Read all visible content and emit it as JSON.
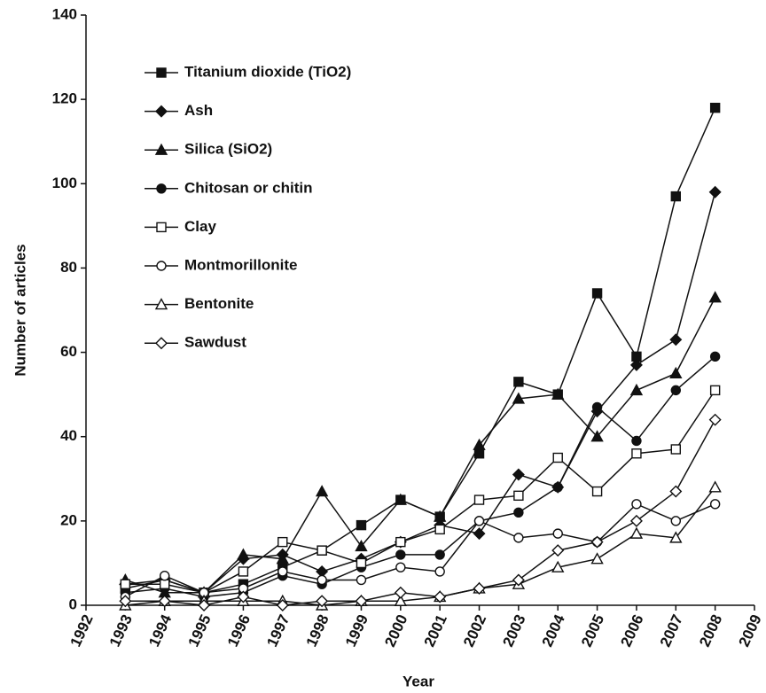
{
  "chart_data": {
    "type": "line",
    "xlabel": "Year",
    "ylabel": "Number of articles",
    "x": [
      1993,
      1994,
      1995,
      1996,
      1997,
      1998,
      1999,
      2000,
      2001,
      2002,
      2003,
      2004,
      2005,
      2006,
      2007,
      2008
    ],
    "xlim": [
      1992,
      2009
    ],
    "xticks": [
      1992,
      1993,
      1994,
      1995,
      1996,
      1997,
      1998,
      1999,
      2000,
      2001,
      2002,
      2003,
      2004,
      2005,
      2006,
      2007,
      2008,
      2009
    ],
    "ylim": [
      0,
      140
    ],
    "yticks": [
      0,
      20,
      40,
      60,
      80,
      100,
      120,
      140
    ],
    "legend": "upper left",
    "series": [
      {
        "name": "Titanium dioxide (TiO2)",
        "color": "#111111",
        "marker": "square",
        "filled": true,
        "values": [
          4,
          6,
          3,
          5,
          9,
          13,
          19,
          25,
          21,
          36,
          53,
          50,
          74,
          59,
          97,
          118
        ]
      },
      {
        "name": "Ash",
        "color": "#111111",
        "marker": "diamond",
        "filled": true,
        "values": [
          5,
          6,
          3,
          11,
          12,
          8,
          11,
          15,
          19,
          17,
          31,
          28,
          46,
          57,
          63,
          98
        ]
      },
      {
        "name": "Silica (SiO2)",
        "color": "#111111",
        "marker": "triangle",
        "filled": true,
        "values": [
          6,
          3,
          3,
          12,
          11,
          27,
          14,
          25,
          21,
          38,
          49,
          50,
          40,
          51,
          55,
          73
        ]
      },
      {
        "name": "Chitosan or chitin",
        "color": "#111111",
        "marker": "circle",
        "filled": true,
        "values": [
          3,
          4,
          2,
          3,
          7,
          5,
          9,
          12,
          12,
          20,
          22,
          28,
          47,
          39,
          51,
          59
        ]
      },
      {
        "name": "Clay",
        "color": "#111111",
        "marker": "square",
        "filled": false,
        "values": [
          5,
          5,
          3,
          8,
          15,
          13,
          10,
          15,
          18,
          25,
          26,
          35,
          27,
          36,
          37,
          51
        ]
      },
      {
        "name": "Montmorillonite",
        "color": "#111111",
        "marker": "circle",
        "filled": false,
        "values": [
          2,
          7,
          3,
          4,
          8,
          6,
          6,
          9,
          8,
          20,
          16,
          17,
          15,
          24,
          20,
          24
        ]
      },
      {
        "name": "Bentonite",
        "color": "#111111",
        "marker": "triangle",
        "filled": false,
        "values": [
          0,
          1,
          1,
          1,
          1,
          0,
          1,
          1,
          2,
          4,
          5,
          9,
          11,
          17,
          16,
          28
        ]
      },
      {
        "name": "Sawdust",
        "color": "#111111",
        "marker": "diamond",
        "filled": false,
        "values": [
          1,
          1,
          0,
          2,
          0,
          1,
          1,
          3,
          2,
          4,
          6,
          13,
          15,
          20,
          27,
          44
        ]
      }
    ]
  }
}
